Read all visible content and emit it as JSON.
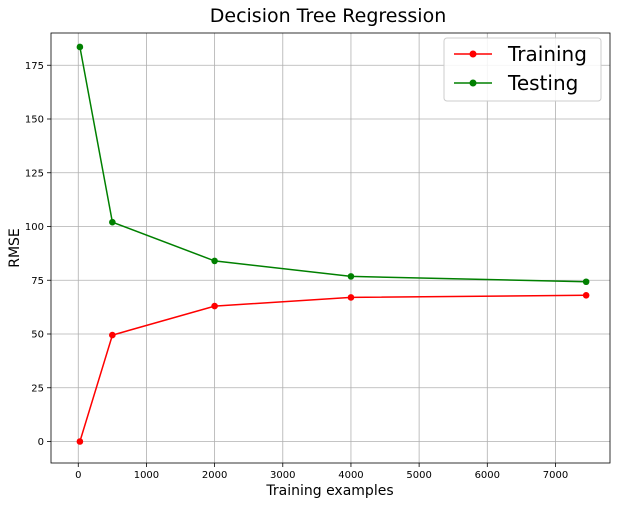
{
  "chart_data": {
    "type": "line",
    "title": "Decision Tree Regression",
    "xlabel": "Training examples",
    "ylabel": "RMSE",
    "xlim": [
      -400,
      7800
    ],
    "ylim": [
      -10,
      190
    ],
    "xticks": [
      0,
      1000,
      2000,
      3000,
      4000,
      5000,
      6000,
      7000
    ],
    "yticks": [
      0,
      25,
      50,
      75,
      100,
      125,
      150,
      175
    ],
    "grid": true,
    "legend_position": "top-right",
    "x": [
      24,
      500,
      2000,
      4000,
      7450
    ],
    "series": [
      {
        "name": "Training",
        "color": "#ff0000",
        "values": [
          0,
          49.5,
          63,
          67,
          68
        ]
      },
      {
        "name": "Testing",
        "color": "#008000",
        "values": [
          183.5,
          102,
          84,
          76.8,
          74.3
        ]
      }
    ]
  }
}
